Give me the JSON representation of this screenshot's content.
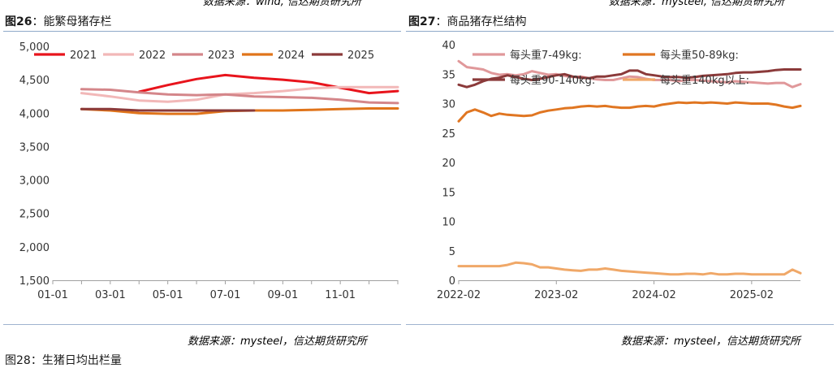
{
  "top_cut": {
    "left": "数据来源：wind, 信达期货研究所",
    "right": "数据来源：mysteel, 信达期货研究所"
  },
  "figures": [
    {
      "num": "图26",
      "sep": "：",
      "title": "能繁母猪存栏"
    },
    {
      "num": "图27",
      "sep": "：",
      "title": "商品猪存栏结构"
    }
  ],
  "sources": {
    "left": "数据来源：mysteel，信达期货研究所",
    "right": "数据来源：mysteel，信达期货研究所"
  },
  "bottom_cut": "图28：生猪日均出栏量",
  "chart_data": [
    {
      "type": "line",
      "title": "能繁母猪存栏",
      "xlabel": "",
      "ylabel": "",
      "ylim": [
        1500,
        5000
      ],
      "yticks": [
        1500,
        2000,
        2500,
        3000,
        3500,
        4000,
        4500,
        5000
      ],
      "ytick_labels": [
        "1,500",
        "2,000",
        "2,500",
        "3,000",
        "3,500",
        "4,000",
        "4,500",
        "5,000"
      ],
      "xlim": [
        1,
        13
      ],
      "xticks": [
        1,
        3,
        5,
        7,
        9,
        11
      ],
      "xtick_labels": [
        "01-01",
        "03-01",
        "05-01",
        "07-01",
        "09-01",
        "11-01"
      ],
      "legend_position": "top",
      "series": [
        {
          "name": "2021",
          "color": "#e8141c",
          "points": [
            [
              4.0,
              4320
            ],
            [
              5.0,
              4420
            ],
            [
              6.0,
              4510
            ],
            [
              7.0,
              4570
            ],
            [
              8.0,
              4530
            ],
            [
              9.0,
              4500
            ],
            [
              10.0,
              4460
            ],
            [
              11.0,
              4380
            ],
            [
              12.0,
              4300
            ],
            [
              13.0,
              4330
            ]
          ]
        },
        {
          "name": "2022",
          "color": "#f2b8b8",
          "points": [
            [
              2.0,
              4300
            ],
            [
              3.0,
              4250
            ],
            [
              4.0,
              4190
            ],
            [
              5.0,
              4170
            ],
            [
              6.0,
              4200
            ],
            [
              7.0,
              4280
            ],
            [
              8.0,
              4300
            ],
            [
              9.0,
              4330
            ],
            [
              10.0,
              4370
            ],
            [
              11.0,
              4390
            ],
            [
              12.0,
              4390
            ],
            [
              13.0,
              4390
            ]
          ]
        },
        {
          "name": "2023",
          "color": "#d4868a",
          "points": [
            [
              2.0,
              4360
            ],
            [
              3.0,
              4350
            ],
            [
              4.0,
              4310
            ],
            [
              5.0,
              4280
            ],
            [
              6.0,
              4270
            ],
            [
              7.0,
              4280
            ],
            [
              8.0,
              4250
            ],
            [
              9.0,
              4240
            ],
            [
              10.0,
              4230
            ],
            [
              11.0,
              4200
            ],
            [
              12.0,
              4160
            ],
            [
              13.0,
              4150
            ]
          ]
        },
        {
          "name": "2024",
          "color": "#e0741a",
          "points": [
            [
              2.0,
              4060
            ],
            [
              3.0,
              4040
            ],
            [
              4.0,
              4000
            ],
            [
              5.0,
              3990
            ],
            [
              6.0,
              3990
            ],
            [
              7.0,
              4030
            ],
            [
              8.0,
              4040
            ],
            [
              9.0,
              4040
            ],
            [
              10.0,
              4050
            ],
            [
              11.0,
              4060
            ],
            [
              12.0,
              4070
            ],
            [
              13.0,
              4070
            ]
          ]
        },
        {
          "name": "2025",
          "color": "#8b3a3a",
          "points": [
            [
              2.0,
              4060
            ],
            [
              3.0,
              4060
            ],
            [
              4.0,
              4040
            ],
            [
              5.0,
              4040
            ],
            [
              6.0,
              4040
            ],
            [
              7.0,
              4040
            ],
            [
              8.0,
              4040
            ]
          ]
        }
      ]
    },
    {
      "type": "line",
      "title": "商品猪存栏结构",
      "xlabel": "",
      "ylabel": "",
      "ylim": [
        0,
        40
      ],
      "yticks": [
        0,
        5,
        10,
        15,
        20,
        25,
        30,
        35,
        40
      ],
      "ytick_labels": [
        "0",
        "5",
        "10",
        "15",
        "20",
        "25",
        "30",
        "35",
        "40"
      ],
      "xlim": [
        0,
        42
      ],
      "xticks": [
        0,
        12,
        24,
        36
      ],
      "xtick_labels": [
        "2022-02",
        "2023-02",
        "2024-02",
        "2025-02"
      ],
      "legend_position": "top",
      "series": [
        {
          "name": "每头重7-49kg:",
          "color": "#e0989a",
          "points": [
            [
              0,
              37.2
            ],
            [
              1,
              36.2
            ],
            [
              2,
              36.0
            ],
            [
              3,
              35.8
            ],
            [
              4,
              35.2
            ],
            [
              5,
              34.9
            ],
            [
              6,
              35.0
            ],
            [
              7,
              34.8
            ],
            [
              8,
              35.0
            ],
            [
              9,
              35.5
            ],
            [
              10,
              35.2
            ],
            [
              11,
              34.9
            ],
            [
              12,
              35.0
            ],
            [
              13,
              34.7
            ],
            [
              14,
              34.5
            ],
            [
              15,
              34.6
            ],
            [
              16,
              34.3
            ],
            [
              17,
              34.1
            ],
            [
              18,
              34.0
            ],
            [
              19,
              34.0
            ],
            [
              20,
              34.3
            ],
            [
              21,
              34.6
            ],
            [
              22,
              34.5
            ],
            [
              23,
              34.2
            ],
            [
              24,
              34.0
            ],
            [
              25,
              34.0
            ],
            [
              26,
              34.0
            ],
            [
              27,
              33.8
            ],
            [
              28,
              34.0
            ],
            [
              29,
              34.0
            ],
            [
              30,
              33.9
            ],
            [
              31,
              33.8
            ],
            [
              32,
              33.7
            ],
            [
              33,
              33.6
            ],
            [
              34,
              33.8
            ],
            [
              35,
              33.7
            ],
            [
              36,
              33.6
            ],
            [
              37,
              33.5
            ],
            [
              38,
              33.4
            ],
            [
              39,
              33.5
            ],
            [
              40,
              33.5
            ],
            [
              41,
              32.8
            ],
            [
              42,
              33.3
            ]
          ]
        },
        {
          "name": "每头重50-89kg:",
          "color": "#e07622",
          "points": [
            [
              0,
              27.0
            ],
            [
              1,
              28.5
            ],
            [
              2,
              29.0
            ],
            [
              3,
              28.5
            ],
            [
              4,
              27.9
            ],
            [
              5,
              28.3
            ],
            [
              6,
              28.1
            ],
            [
              7,
              28.0
            ],
            [
              8,
              27.9
            ],
            [
              9,
              28.0
            ],
            [
              10,
              28.5
            ],
            [
              11,
              28.8
            ],
            [
              12,
              29.0
            ],
            [
              13,
              29.2
            ],
            [
              14,
              29.3
            ],
            [
              15,
              29.5
            ],
            [
              16,
              29.6
            ],
            [
              17,
              29.5
            ],
            [
              18,
              29.6
            ],
            [
              19,
              29.4
            ],
            [
              20,
              29.3
            ],
            [
              21,
              29.3
            ],
            [
              22,
              29.5
            ],
            [
              23,
              29.6
            ],
            [
              24,
              29.5
            ],
            [
              25,
              29.8
            ],
            [
              26,
              30.0
            ],
            [
              27,
              30.2
            ],
            [
              28,
              30.1
            ],
            [
              29,
              30.2
            ],
            [
              30,
              30.1
            ],
            [
              31,
              30.2
            ],
            [
              32,
              30.1
            ],
            [
              33,
              30.0
            ],
            [
              34,
              30.2
            ],
            [
              35,
              30.1
            ],
            [
              36,
              30.0
            ],
            [
              37,
              30.0
            ],
            [
              38,
              30.0
            ],
            [
              39,
              29.8
            ],
            [
              40,
              29.5
            ],
            [
              41,
              29.3
            ],
            [
              42,
              29.6
            ]
          ]
        },
        {
          "name": "每头重90-140kg:",
          "color": "#8b3a3a",
          "points": [
            [
              0,
              33.2
            ],
            [
              1,
              32.8
            ],
            [
              2,
              33.2
            ],
            [
              3,
              33.8
            ],
            [
              4,
              34.2
            ],
            [
              5,
              34.4
            ],
            [
              6,
              34.8
            ],
            [
              7,
              34.5
            ],
            [
              8,
              34.2
            ],
            [
              9,
              34.0
            ],
            [
              10,
              34.2
            ],
            [
              11,
              34.5
            ],
            [
              12,
              34.8
            ],
            [
              13,
              35.0
            ],
            [
              14,
              34.6
            ],
            [
              15,
              34.4
            ],
            [
              16,
              34.3
            ],
            [
              17,
              34.6
            ],
            [
              18,
              34.6
            ],
            [
              19,
              34.8
            ],
            [
              20,
              35.0
            ],
            [
              21,
              35.6
            ],
            [
              22,
              35.6
            ],
            [
              23,
              35.0
            ],
            [
              24,
              34.8
            ],
            [
              25,
              34.6
            ],
            [
              26,
              34.5
            ],
            [
              27,
              34.5
            ],
            [
              28,
              34.4
            ],
            [
              29,
              34.5
            ],
            [
              30,
              34.7
            ],
            [
              31,
              34.8
            ],
            [
              32,
              34.9
            ],
            [
              33,
              35.0
            ],
            [
              34,
              35.2
            ],
            [
              35,
              35.3
            ],
            [
              36,
              35.3
            ],
            [
              37,
              35.4
            ],
            [
              38,
              35.5
            ],
            [
              39,
              35.7
            ],
            [
              40,
              35.8
            ],
            [
              41,
              35.8
            ],
            [
              42,
              35.8
            ]
          ]
        },
        {
          "name": "每头重140kg以上:",
          "color": "#f0a868",
          "points": [
            [
              0,
              2.4
            ],
            [
              1,
              2.4
            ],
            [
              2,
              2.4
            ],
            [
              3,
              2.4
            ],
            [
              4,
              2.4
            ],
            [
              5,
              2.4
            ],
            [
              6,
              2.6
            ],
            [
              7,
              3.0
            ],
            [
              8,
              2.9
            ],
            [
              9,
              2.7
            ],
            [
              10,
              2.2
            ],
            [
              11,
              2.2
            ],
            [
              12,
              2.0
            ],
            [
              13,
              1.8
            ],
            [
              14,
              1.7
            ],
            [
              15,
              1.6
            ],
            [
              16,
              1.8
            ],
            [
              17,
              1.8
            ],
            [
              18,
              2.0
            ],
            [
              19,
              1.8
            ],
            [
              20,
              1.6
            ],
            [
              21,
              1.5
            ],
            [
              22,
              1.4
            ],
            [
              23,
              1.3
            ],
            [
              24,
              1.2
            ],
            [
              25,
              1.1
            ],
            [
              26,
              1.0
            ],
            [
              27,
              1.0
            ],
            [
              28,
              1.1
            ],
            [
              29,
              1.1
            ],
            [
              30,
              1.0
            ],
            [
              31,
              1.2
            ],
            [
              32,
              1.0
            ],
            [
              33,
              1.0
            ],
            [
              34,
              1.1
            ],
            [
              35,
              1.1
            ],
            [
              36,
              1.0
            ],
            [
              37,
              1.0
            ],
            [
              38,
              1.0
            ],
            [
              39,
              1.0
            ],
            [
              40,
              1.0
            ],
            [
              41,
              1.8
            ],
            [
              42,
              1.2
            ]
          ]
        }
      ]
    }
  ]
}
